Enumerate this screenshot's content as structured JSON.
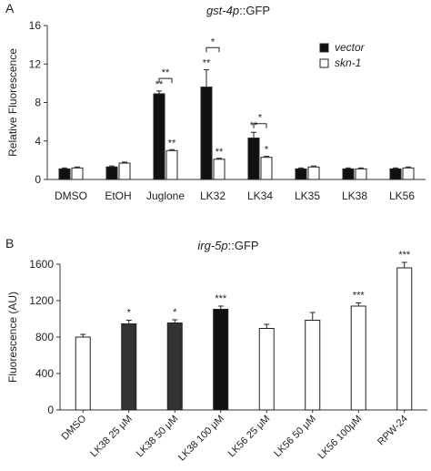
{
  "chart_data": [
    {
      "panel": "A",
      "type": "bar",
      "title_italic": "gst-4p",
      "title_rest": "::GFP",
      "ylabel": "Relative Fluorescence",
      "xlabel": "",
      "ylim": [
        0,
        16
      ],
      "yticks": [
        "0",
        "4",
        "8",
        "12",
        "16"
      ],
      "categories": [
        "DMSO",
        "EtOH",
        "Juglone",
        "LK32",
        "LK34",
        "LK35",
        "LK38",
        "LK56"
      ],
      "series": [
        {
          "name": "vector",
          "fill": "#111111",
          "values": [
            1.1,
            1.3,
            8.9,
            9.6,
            4.3,
            1.1,
            1.1,
            1.1
          ],
          "errors": [
            0.1,
            0.1,
            0.3,
            1.8,
            0.6,
            0.1,
            0.1,
            0.1
          ],
          "sig": [
            "",
            "",
            "**",
            "**",
            "**",
            "",
            "",
            ""
          ]
        },
        {
          "name": "skn-1",
          "fill": "#ffffff",
          "values": [
            1.2,
            1.7,
            3.0,
            2.1,
            2.3,
            1.3,
            1.1,
            1.2
          ],
          "errors": [
            0.1,
            0.1,
            0.1,
            0.1,
            0.1,
            0.1,
            0.1,
            0.1
          ],
          "sig": [
            "",
            "",
            "**",
            "**",
            "*",
            "",
            "",
            ""
          ]
        }
      ],
      "brackets": [
        {
          "category": "Juglone",
          "label": "**",
          "level": 10.5
        },
        {
          "category": "LK32",
          "label": "*",
          "level": 13.7
        },
        {
          "category": "LK34",
          "label": "*",
          "level": 5.8
        }
      ],
      "legend": {
        "placement": "top-right",
        "entries": [
          "vector",
          "skn-1"
        ]
      },
      "grid": false
    },
    {
      "panel": "B",
      "type": "bar",
      "title_italic": "irg-5p",
      "title_rest": "::GFP",
      "ylabel": "Fluorescence (AU)",
      "xlabel": "",
      "ylim": [
        0,
        1600
      ],
      "yticks": [
        "0",
        "400",
        "800",
        "1200",
        "1600"
      ],
      "categories": [
        "DMSO",
        "LK38 25 μM",
        "LK38 50 μM",
        "LK38 100 μM",
        "LK56 25 μM",
        "LK56 50 μM",
        "LK56 100μM",
        "RPW-24"
      ],
      "values": [
        800,
        945,
        955,
        1105,
        895,
        985,
        1140,
        1560
      ],
      "errors": [
        30,
        40,
        35,
        35,
        45,
        85,
        35,
        60
      ],
      "fills": [
        "#ffffff",
        "#333333",
        "#333333",
        "#111111",
        "#ffffff",
        "#ffffff",
        "#ffffff",
        "#ffffff"
      ],
      "sig": [
        "",
        "*",
        "*",
        "***",
        "",
        "",
        "***",
        "***"
      ],
      "grid": false
    }
  ],
  "panel_labels": [
    "A",
    "B"
  ]
}
